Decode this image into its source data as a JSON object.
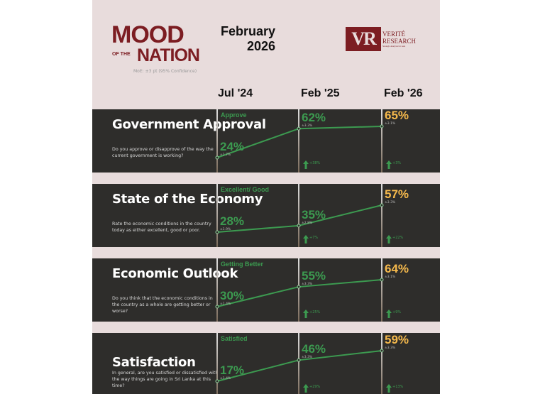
{
  "header": {
    "logo": {
      "mood": "MOOD",
      "of_the": "OF THE",
      "nation": "NATION"
    },
    "moe_note": "MoE: ±3 pt (95% Confidence)",
    "date_month": "February",
    "date_year": "2026",
    "publisher_logo": {
      "mark": "VR",
      "name_line1": "VERITÉ",
      "name_line2": "RESEARCH",
      "tagline": "Strategic Analysis for Asia"
    }
  },
  "colors": {
    "brand": "#7c1d22",
    "line": "#3c9a50",
    "latest": "#f5b94c",
    "panel": "#2e2d2b"
  },
  "chart_data": [
    {
      "type": "line",
      "title": "Government Approval",
      "question": "Do you approve or disapprove of the way the current government is working?",
      "series": [
        {
          "name": "Approve",
          "values": [
            24,
            62,
            65
          ]
        }
      ],
      "categories": [
        "Jul '24",
        "Feb '25",
        "Feb '26"
      ],
      "labels": [
        "24%",
        "62%",
        "65%"
      ],
      "moe": [
        "±1.7%",
        "±3.3%",
        "±3.1%"
      ],
      "changes": [
        "",
        "+38%",
        "+3%"
      ]
    },
    {
      "type": "line",
      "title": "State of the Economy",
      "question": "Rate the economic conditions in the country today as either excellent, good or poor.",
      "series": [
        {
          "name": "Excellent/ Good",
          "values": [
            28,
            35,
            57
          ]
        }
      ],
      "categories": [
        "Jul '24",
        "Feb '25",
        "Feb '26"
      ],
      "labels": [
        "28%",
        "35%",
        "57%"
      ],
      "moe": [
        "±1.9%",
        "±2.8%",
        "±3.3%"
      ],
      "changes": [
        "",
        "+7%",
        "+22%"
      ]
    },
    {
      "type": "line",
      "title": "Economic Outlook",
      "question": "Do you think that the economic conditions in the country as a whole are getting better or worse?",
      "series": [
        {
          "name": "Getting Better",
          "values": [
            30,
            55,
            64
          ]
        }
      ],
      "categories": [
        "Jul '24",
        "Feb '25",
        "Feb '26"
      ],
      "labels": [
        "30%",
        "55%",
        "64%"
      ],
      "moe": [
        "±1.4%",
        "±3.3%",
        "±3.1%"
      ],
      "changes": [
        "",
        "+25%",
        "+9%"
      ]
    },
    {
      "type": "line",
      "title": "Satisfaction",
      "question": "In general, are you satisfied or dissatisfied with the way things are going in Sri Lanka at this time?",
      "series": [
        {
          "name": "Satisfied",
          "values": [
            17,
            46,
            59
          ]
        }
      ],
      "categories": [
        "Jul '24",
        "Feb '25",
        "Feb '26"
      ],
      "labels": [
        "17%",
        "46%",
        "59%"
      ],
      "moe": [
        "±1.4%",
        "±3.3%",
        "±3.3%"
      ],
      "changes": [
        "",
        "+29%",
        "+13%"
      ]
    }
  ],
  "columns": [
    "Jul '24",
    "Feb '25",
    "Feb '26"
  ]
}
